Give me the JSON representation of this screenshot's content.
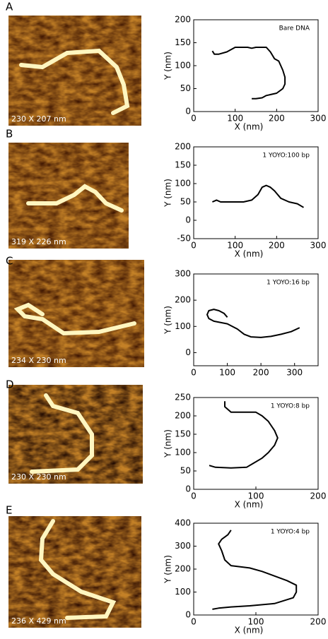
{
  "chart_data": [
    {
      "type": "line",
      "panel": "A",
      "image_label": "230 X 207 nm",
      "annotation": "Bare DNA",
      "xlabel": "X (nm)",
      "ylabel": "Y (nm)",
      "color": "#000000",
      "x": [
        45,
        50,
        60,
        80,
        100,
        130,
        140,
        150,
        175,
        185,
        195,
        205,
        210,
        215,
        220,
        220,
        215,
        200,
        175,
        165,
        150,
        140
      ],
      "values": [
        132,
        125,
        125,
        130,
        140,
        140,
        138,
        140,
        140,
        130,
        115,
        110,
        100,
        90,
        75,
        60,
        50,
        40,
        35,
        30,
        28,
        28
      ],
      "xlim": [
        0,
        300
      ],
      "ylim": [
        0,
        200
      ],
      "xticks": [
        0,
        100,
        200,
        300
      ],
      "yticks": [
        0,
        50,
        100,
        150,
        200
      ]
    },
    {
      "type": "line",
      "panel": "B",
      "image_label": "319 X 226 nm",
      "annotation": "1 YOYO:100 bp",
      "xlabel": "X (nm)",
      "ylabel": "Y (nm)",
      "color": "#000000",
      "x": [
        45,
        55,
        65,
        120,
        140,
        155,
        165,
        175,
        185,
        195,
        210,
        230,
        250,
        265
      ],
      "values": [
        50,
        55,
        50,
        50,
        55,
        70,
        90,
        95,
        90,
        80,
        60,
        50,
        45,
        35
      ],
      "xlim": [
        0,
        300
      ],
      "ylim": [
        -50,
        200
      ],
      "xticks": [
        0,
        100,
        200,
        300
      ],
      "yticks": [
        -50,
        0,
        50,
        100,
        150,
        200
      ]
    },
    {
      "type": "line",
      "panel": "C",
      "image_label": "234 X 230 nm",
      "annotation": "1 YOYO:16 bp",
      "ylabel": "Y (nm)",
      "color": "#000000",
      "x": [
        100,
        90,
        75,
        60,
        45,
        40,
        45,
        60,
        100,
        130,
        150,
        170,
        200,
        230,
        260,
        290,
        315
      ],
      "values": [
        135,
        150,
        160,
        165,
        160,
        145,
        130,
        120,
        110,
        90,
        70,
        60,
        58,
        62,
        70,
        80,
        95
      ],
      "xlim": [
        0,
        370
      ],
      "ylim": [
        -50,
        300
      ],
      "xticks": [
        0,
        100,
        200,
        300
      ],
      "yticks": [
        0,
        100,
        200,
        300
      ]
    },
    {
      "type": "line",
      "panel": "D",
      "image_label": "230 X 230 nm",
      "annotation": "1 YOYO:8 bp",
      "xlabel": "X (nm)",
      "ylabel": "Y (nm)",
      "color": "#000000",
      "x": [
        50,
        50,
        60,
        100,
        110,
        120,
        130,
        135,
        130,
        120,
        110,
        95,
        85,
        60,
        35,
        25
      ],
      "values": [
        240,
        225,
        210,
        210,
        200,
        185,
        160,
        140,
        120,
        100,
        85,
        70,
        60,
        58,
        60,
        65
      ],
      "xlim": [
        0,
        200
      ],
      "ylim": [
        0,
        250
      ],
      "xticks": [
        0,
        100,
        200
      ],
      "yticks": [
        0,
        50,
        100,
        150,
        200,
        250
      ]
    },
    {
      "type": "line",
      "panel": "E",
      "image_label": "236 X 429 nm",
      "annotation": "1 YOYO:4 bp",
      "xlabel": "X (nm)",
      "ylabel": "Y (nm)",
      "color": "#000000",
      "x": [
        60,
        55,
        45,
        40,
        45,
        50,
        60,
        90,
        110,
        130,
        150,
        165,
        165,
        160,
        130,
        90,
        60,
        40,
        30
      ],
      "values": [
        370,
        350,
        330,
        310,
        280,
        240,
        215,
        205,
        190,
        170,
        150,
        130,
        100,
        75,
        50,
        40,
        35,
        30,
        25
      ],
      "xlim": [
        0,
        200
      ],
      "ylim": [
        0,
        400
      ],
      "xticks": [
        0,
        100,
        200
      ],
      "yticks": [
        0,
        100,
        200,
        300,
        400
      ]
    }
  ]
}
